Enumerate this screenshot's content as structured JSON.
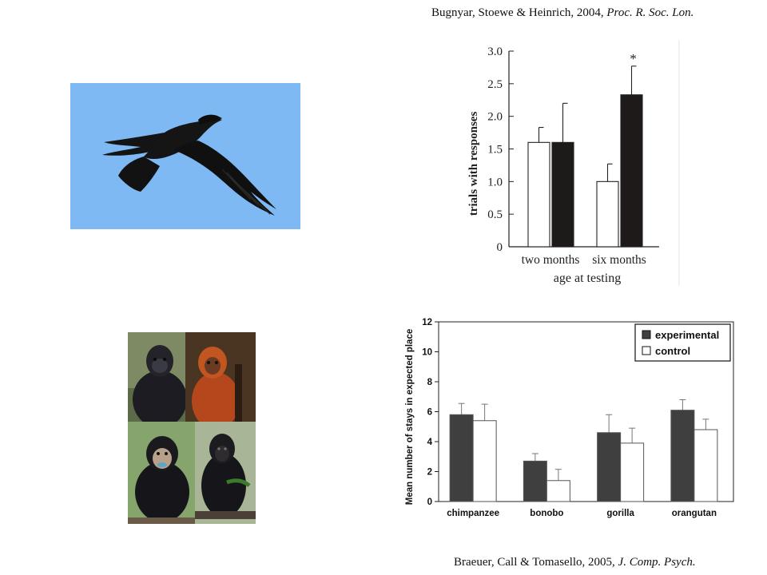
{
  "citations": {
    "top_authors": "Bugnyar, Stoewe & Heinrich, 2004, ",
    "top_journal": "Proc. R. Soc. Lon.",
    "bottom_authors": "Braeuer, Call & Tomasello, 2005, ",
    "bottom_journal": "J. Comp. Psych."
  },
  "colors": {
    "sky": "#7fb9f3",
    "bar_dark": "#1f1a1a",
    "bar_grey": "#3f3f3f",
    "bar_white": "#ffffff"
  },
  "images": {
    "raven": "raven-in-flight",
    "apes": [
      "gorilla",
      "orangutan",
      "chimpanzee",
      "bonobo"
    ]
  },
  "chart_data": [
    {
      "type": "bar",
      "categories": [
        "two months",
        "six months"
      ],
      "series": [
        {
          "fill": "white",
          "values": [
            1.6,
            1.0
          ],
          "errors": [
            0.23,
            0.27
          ]
        },
        {
          "fill": "black",
          "values": [
            1.6,
            2.33
          ],
          "errors": [
            0.6,
            0.44
          ]
        }
      ],
      "annotations": [
        {
          "category": "six months",
          "text": "*"
        }
      ],
      "xlabel": "age at testing",
      "ylabel": "trials with responses",
      "ylim": [
        0,
        3.0
      ],
      "yticks": [
        "0",
        "0.5",
        "1.0",
        "1.5",
        "2.0",
        "2.5",
        "3.0"
      ],
      "grid": false
    },
    {
      "type": "bar",
      "categories": [
        "chimpanzee",
        "bonobo",
        "gorilla",
        "orangutan"
      ],
      "series": [
        {
          "name": "experimental",
          "values": [
            5.8,
            2.7,
            4.6,
            6.1
          ],
          "errors": [
            0.75,
            0.5,
            1.2,
            0.7
          ]
        },
        {
          "name": "control",
          "values": [
            5.4,
            1.4,
            3.9,
            4.8
          ],
          "errors": [
            1.1,
            0.75,
            1.0,
            0.7
          ]
        }
      ],
      "xlabel": "",
      "ylabel": "Mean number of stays in expected place",
      "ylim": [
        0,
        12
      ],
      "yticks": [
        "0",
        "2",
        "4",
        "6",
        "8",
        "10",
        "12"
      ],
      "legend": "top-right",
      "grid": false
    }
  ]
}
